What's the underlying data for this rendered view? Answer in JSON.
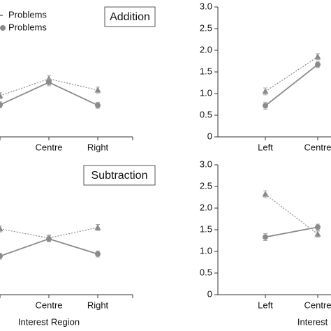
{
  "chart_data": [
    {
      "type": "line",
      "title": "Addition",
      "categories": [
        null,
        "Centre",
        "Right"
      ],
      "ylim": [
        0,
        3
      ],
      "series": [
        {
          "name": "Problems",
          "color": "#8a8a8a",
          "marker": "triangle",
          "linestyle": "dotted",
          "values": [
            0.95,
            1.34,
            1.08
          ],
          "errors": [
            0.07,
            0.08,
            0.07
          ]
        },
        {
          "name": "Problems",
          "color": "#8a8a8a",
          "marker": "circle",
          "linestyle": "solid",
          "values": [
            0.74,
            1.26,
            0.73
          ],
          "errors": [
            0.07,
            0.08,
            0.07
          ]
        }
      ]
    },
    {
      "type": "line",
      "categories": [
        "Left",
        "Centre"
      ],
      "ylim": [
        0,
        3
      ],
      "yticks": [
        0,
        {
          "value": 0.5,
          "label": "0.5"
        },
        {
          "value": 1,
          "label": "1.0"
        },
        {
          "value": 1.5,
          "label": "1.5"
        },
        {
          "value": 2,
          "label": "2.0"
        },
        {
          "value": 2.5,
          "label": "2.5"
        },
        {
          "value": 3,
          "label": "3.0"
        }
      ],
      "series": [
        {
          "color": "#8a8a8a",
          "marker": "triangle",
          "linestyle": "dotted",
          "values": [
            1.05,
            1.85
          ],
          "errors": [
            0.08,
            0.07
          ]
        },
        {
          "color": "#8a8a8a",
          "marker": "circle",
          "linestyle": "solid",
          "values": [
            0.72,
            1.67
          ],
          "errors": [
            0.08,
            0.07
          ]
        }
      ]
    },
    {
      "type": "line",
      "title": "Subtraction",
      "x_label": "Interest Region",
      "categories": [
        null,
        "Centre",
        "Right"
      ],
      "ylim": [
        0,
        3
      ],
      "series": [
        {
          "color": "#8a8a8a",
          "marker": "triangle",
          "linestyle": "dotted",
          "values": [
            1.52,
            1.31,
            1.55
          ],
          "errors": [
            0.07,
            0.07,
            0.07
          ]
        },
        {
          "color": "#8a8a8a",
          "marker": "circle",
          "linestyle": "solid",
          "values": [
            0.89,
            1.29,
            0.94
          ],
          "errors": [
            0.07,
            0.07,
            0.07
          ]
        }
      ]
    },
    {
      "type": "line",
      "x_label": "Interest Region",
      "categories": [
        "Left",
        "Centre"
      ],
      "ylim": [
        0,
        3
      ],
      "yticks": [
        0,
        {
          "value": 0.5,
          "label": "0.5"
        },
        {
          "value": 1,
          "label": "1.0"
        },
        {
          "value": 1.5,
          "label": "1.5"
        },
        {
          "value": 2,
          "label": "2.0"
        },
        {
          "value": 2.5,
          "label": "2.5"
        },
        {
          "value": 3,
          "label": "3.0"
        }
      ],
      "series": [
        {
          "color": "#8a8a8a",
          "marker": "triangle",
          "linestyle": "dotted",
          "values": [
            2.32,
            1.4
          ],
          "errors": [
            0.08,
            0.07
          ]
        },
        {
          "color": "#8a8a8a",
          "marker": "circle",
          "linestyle": "solid",
          "values": [
            1.33,
            1.56
          ],
          "errors": [
            0.08,
            0.07
          ]
        }
      ]
    }
  ]
}
